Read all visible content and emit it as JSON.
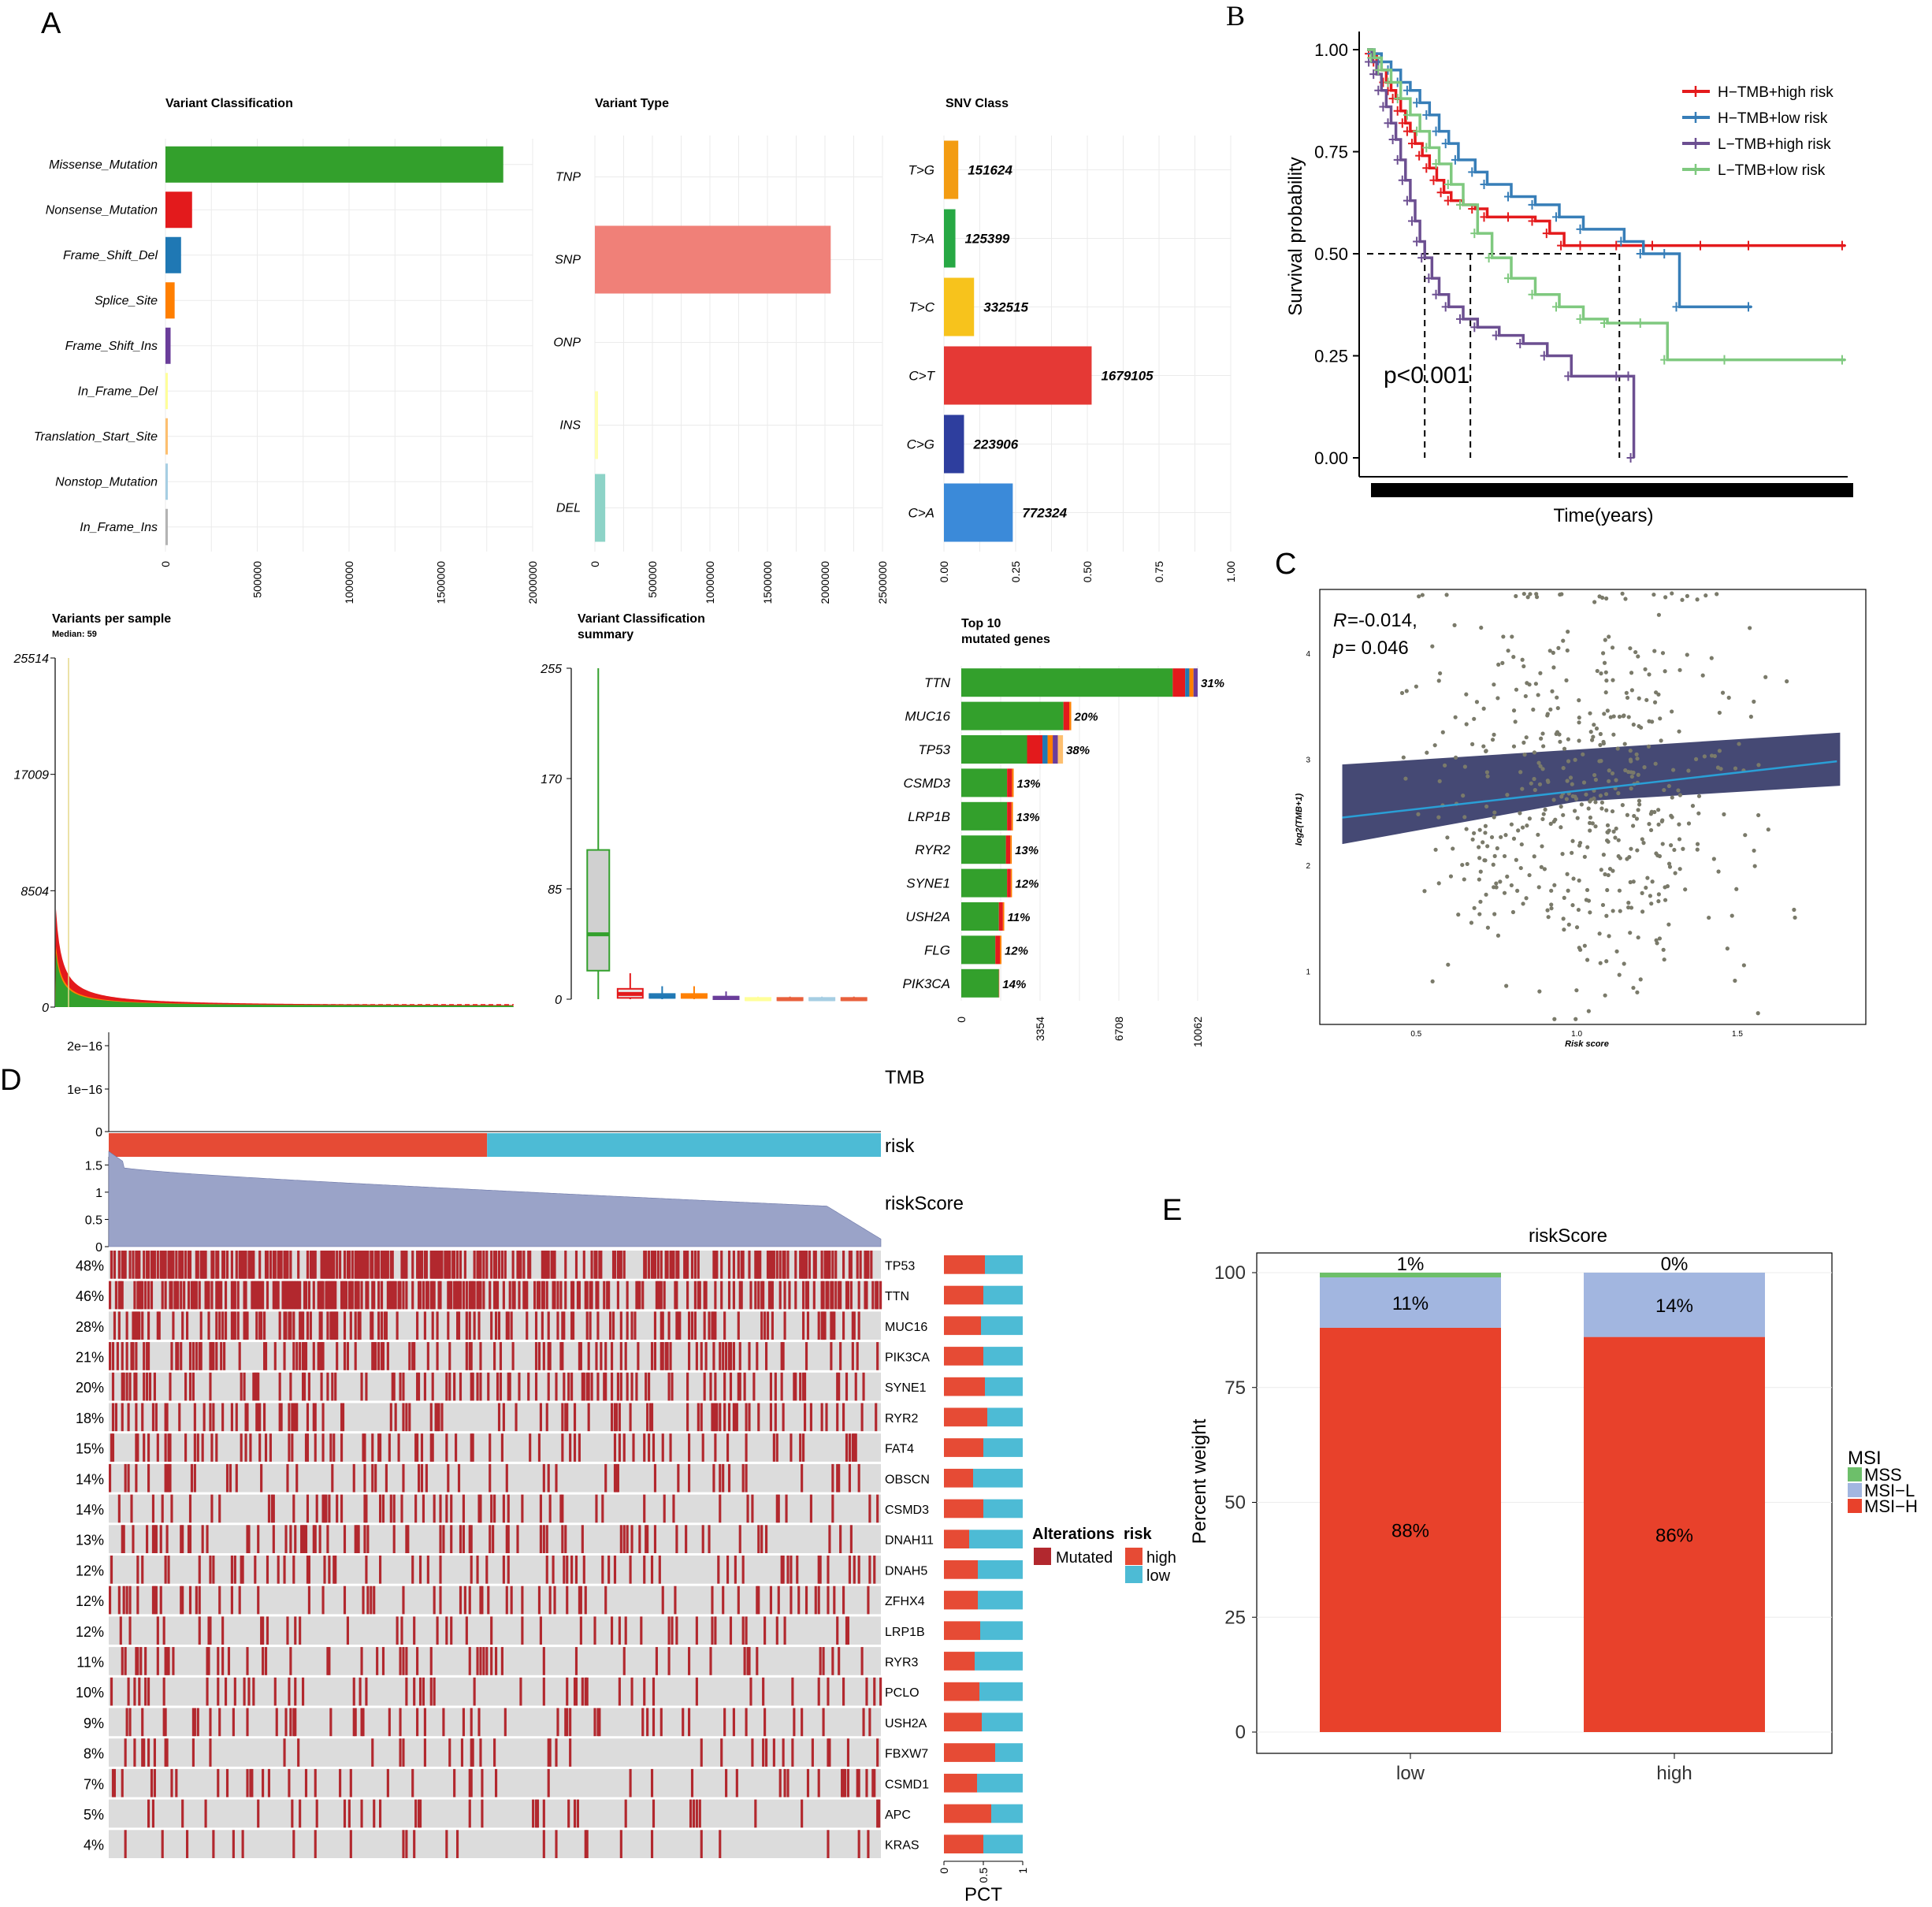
{
  "panels": {
    "A": "A",
    "B": "B",
    "C": "C",
    "D": "D",
    "E": "E"
  },
  "colors": {
    "green": "#33a02c",
    "red": "#e31a1c",
    "blue": "#1f78b4",
    "orange": "#ff7f00",
    "purple": "#6a3d9a",
    "yellow": "#ffff99",
    "peach": "#fdbf6f",
    "lightblue": "#a6cee3",
    "pink": "#fb9a99",
    "salmon": "#f08078",
    "teal": "#8dd3c7",
    "grey": "#b3b3b3",
    "mut": "#b2282e",
    "high": "#e64b35",
    "low": "#4dbbd5",
    "risk_area": "#9aa3c8",
    "km_red": "#e41a1c",
    "km_blue": "#377eb8",
    "km_purple": "#6c4f91",
    "km_green": "#7fc97f",
    "msi_h": "#e8412b",
    "msi_l": "#a2b6e0",
    "mss": "#6dbf6a",
    "scatter": "#7a7a6a",
    "band": "#3b3f6d",
    "fit": "#2a9fd6"
  },
  "chart_data": [
    {
      "id": "variant_classification",
      "type": "bar",
      "title": "Variant Classification",
      "categories": [
        "Missense_Mutation",
        "Nonsense_Mutation",
        "Frame_Shift_Del",
        "Splice_Site",
        "Frame_Shift_Ins",
        "In_Frame_Del",
        "Translation_Start_Site",
        "Nonstop_Mutation",
        "In_Frame_Ins"
      ],
      "values": [
        1840000,
        145000,
        85000,
        50000,
        28000,
        9000,
        5000,
        3000,
        2500
      ],
      "colors": [
        "#33a02c",
        "#e31a1c",
        "#1f78b4",
        "#ff7f00",
        "#6a3d9a",
        "#ffff99",
        "#fdbf6f",
        "#a6cee3",
        "#b3b3b3"
      ],
      "ticks": [
        "0",
        "500000",
        "1000000",
        "1500000",
        "2000000"
      ],
      "xlim": [
        0,
        2000000
      ]
    },
    {
      "id": "variant_type",
      "type": "bar",
      "title": "Variant Type",
      "categories": [
        "TNP",
        "SNP",
        "ONP",
        "INS",
        "DEL"
      ],
      "values": [
        0,
        2050000,
        0,
        18000,
        90000
      ],
      "colors": [
        "#fb9a99",
        "#f08078",
        "#fb9a99",
        "#ffffb3",
        "#8dd3c7"
      ],
      "ticks": [
        "0",
        "500000",
        "1000000",
        "1500000",
        "2000000",
        "2500000"
      ],
      "xlim": [
        0,
        2500000
      ]
    },
    {
      "id": "snv_class",
      "type": "bar",
      "title": "SNV Class",
      "categories": [
        "T>G",
        "T>A",
        "T>C",
        "C>T",
        "C>G",
        "C>A"
      ],
      "values": [
        0.05,
        0.04,
        0.105,
        0.515,
        0.07,
        0.24
      ],
      "labels": [
        "151624",
        "125399",
        "332515",
        "1679105",
        "223906",
        "772324"
      ],
      "colors": [
        "#f39c12",
        "#27a844",
        "#f7c31c",
        "#e53935",
        "#2e3e9e",
        "#3b8ad9"
      ],
      "ticks": [
        "0.00",
        "0.25",
        "0.50",
        "0.75",
        "1.00"
      ],
      "xlim": [
        0,
        1
      ]
    },
    {
      "id": "variants_per_sample",
      "type": "area",
      "title": "Variants per sample",
      "subtitle": "Median: 59",
      "ticks": [
        "0",
        "8504",
        "17009",
        "25514"
      ],
      "ylim": [
        0,
        25514
      ]
    },
    {
      "id": "variant_classification_summary",
      "type": "box",
      "title": "Variant Classification",
      "title2": "summary",
      "ticks": [
        "0",
        "85",
        "170",
        "255"
      ],
      "ylim": [
        0,
        255
      ],
      "boxes": [
        {
          "color": "#33a02c",
          "min": 0,
          "q1": 22,
          "median": 50,
          "q3": 115,
          "max": 255
        },
        {
          "color": "#e31a1c",
          "min": 0,
          "q1": 1,
          "median": 4,
          "q3": 8,
          "max": 20
        },
        {
          "color": "#1f78b4",
          "min": 0,
          "q1": 1,
          "median": 2,
          "q3": 4,
          "max": 10
        },
        {
          "color": "#ff7f00",
          "min": 0,
          "q1": 1,
          "median": 2,
          "q3": 4,
          "max": 10
        },
        {
          "color": "#6a3d9a",
          "min": 0,
          "q1": 0,
          "median": 1,
          "q3": 2,
          "max": 6
        },
        {
          "color": "#ffff99",
          "min": 0,
          "q1": 0,
          "median": 0,
          "q3": 1,
          "max": 2
        },
        {
          "color": "#e8603c",
          "min": 0,
          "q1": 0,
          "median": 0,
          "q3": 1,
          "max": 2
        },
        {
          "color": "#a6cee3",
          "min": 0,
          "q1": 0,
          "median": 0,
          "q3": 1,
          "max": 2
        },
        {
          "color": "#e8603c",
          "min": 0,
          "q1": 0,
          "median": 0,
          "q3": 1,
          "max": 2
        }
      ]
    },
    {
      "id": "top10",
      "type": "bar",
      "title": "Top 10",
      "title2": "mutated genes",
      "categories": [
        "TTN",
        "MUC16",
        "TP53",
        "CSMD3",
        "LRP1B",
        "RYR2",
        "SYNE1",
        "USH2A",
        "FLG",
        "PIK3CA"
      ],
      "values": [
        10062,
        4680,
        4330,
        2230,
        2200,
        2150,
        2160,
        1830,
        1710,
        1620
      ],
      "green": [
        9000,
        4350,
        2800,
        1950,
        1950,
        1900,
        1950,
        1600,
        1450,
        1600
      ],
      "labels": [
        "31%",
        "20%",
        "38%",
        "13%",
        "13%",
        "13%",
        "12%",
        "11%",
        "12%",
        "14%"
      ],
      "ticks": [
        "0",
        "3354",
        "6708",
        "10062"
      ],
      "xlim": [
        0,
        10062
      ]
    },
    {
      "id": "survival",
      "type": "line",
      "xlabel": "Time(years)",
      "ylabel": "Survival probability",
      "yticks": [
        "0.00",
        "0.25",
        "0.50",
        "0.75",
        "1.00"
      ],
      "ylim": [
        0,
        1
      ],
      "xlim": [
        0,
        20
      ],
      "pvalue": "p<0.001",
      "median_line": 0.5,
      "median_times": [
        2.4,
        4.3,
        10.5
      ],
      "series": [
        {
          "name": "H−TMB+high risk",
          "color": "#e41a1c",
          "x": [
            0,
            0.2,
            0.4,
            0.6,
            0.8,
            1.0,
            1.2,
            1.4,
            1.6,
            1.8,
            2.0,
            2.3,
            2.6,
            2.9,
            3.2,
            3.5,
            4.0,
            4.5,
            5.0,
            6.0,
            7.0,
            7.6,
            8.2,
            9.0,
            10.5,
            12,
            14,
            16,
            19.9
          ],
          "y": [
            1,
            0.99,
            0.97,
            0.95,
            0.92,
            0.9,
            0.88,
            0.85,
            0.82,
            0.8,
            0.77,
            0.74,
            0.71,
            0.68,
            0.65,
            0.63,
            0.62,
            0.61,
            0.59,
            0.59,
            0.58,
            0.55,
            0.52,
            0.52,
            0.52,
            0.52,
            0.52,
            0.52,
            0.52
          ]
        },
        {
          "name": "H−TMB+low risk",
          "color": "#377eb8",
          "x": [
            0,
            0.3,
            0.6,
            1.0,
            1.4,
            1.8,
            2.2,
            2.6,
            3.0,
            3.4,
            3.8,
            4.5,
            5.0,
            6.0,
            7.0,
            8.0,
            9.0,
            10.7,
            11.5,
            12.5,
            13.0,
            16.0
          ],
          "y": [
            1,
            0.99,
            0.97,
            0.95,
            0.92,
            0.9,
            0.87,
            0.84,
            0.8,
            0.77,
            0.73,
            0.7,
            0.67,
            0.64,
            0.62,
            0.59,
            0.56,
            0.53,
            0.5,
            0.5,
            0.37,
            0.37
          ]
        },
        {
          "name": "L−TMB+high risk",
          "color": "#6c4f91",
          "x": [
            0,
            0.2,
            0.4,
            0.6,
            0.8,
            1.0,
            1.2,
            1.4,
            1.6,
            1.8,
            2.0,
            2.2,
            2.4,
            2.7,
            3.0,
            3.4,
            4.0,
            4.6,
            5.5,
            6.5,
            7.5,
            8.5,
            10.5,
            11.0,
            11.1
          ],
          "y": [
            1,
            0.97,
            0.94,
            0.9,
            0.86,
            0.82,
            0.78,
            0.73,
            0.68,
            0.63,
            0.58,
            0.53,
            0.49,
            0.44,
            0.4,
            0.37,
            0.34,
            0.32,
            0.3,
            0.28,
            0.25,
            0.2,
            0.2,
            0.2,
            0.0
          ]
        },
        {
          "name": "L−TMB+low risk",
          "color": "#7fc97f",
          "x": [
            0,
            0.3,
            0.6,
            1.0,
            1.4,
            1.8,
            2.2,
            2.6,
            3.0,
            3.5,
            4.0,
            4.6,
            5.2,
            6.0,
            7.0,
            8.0,
            9.0,
            10.0,
            11.5,
            12.5,
            15.0,
            19.9
          ],
          "y": [
            1,
            0.98,
            0.95,
            0.92,
            0.88,
            0.84,
            0.8,
            0.76,
            0.72,
            0.67,
            0.62,
            0.55,
            0.49,
            0.44,
            0.4,
            0.37,
            0.34,
            0.33,
            0.33,
            0.24,
            0.24,
            0.24
          ]
        }
      ]
    },
    {
      "id": "scatter",
      "type": "scatter",
      "xlabel": "Risk score",
      "ylabel": "log2(TMB+1)",
      "r_label": "R",
      "r_value": "=-0.014,",
      "p_label": "p",
      "p_value": "= 0.046",
      "xticks": [
        "0.5",
        "1.0",
        "1.5"
      ],
      "yticks": [
        "1",
        "2",
        "3",
        "4"
      ],
      "xlim": [
        0.2,
        1.9
      ],
      "ylim": [
        0.5,
        4.6
      ]
    },
    {
      "id": "oncoplot",
      "type": "heatmap",
      "tmb_ticks": [
        "0",
        "1e−16",
        "2e−16"
      ],
      "risk_ticks": [
        "0",
        "0.5",
        "1",
        "1.5"
      ],
      "tracks": [
        "TMB",
        "risk",
        "riskScore"
      ],
      "genes": [
        "TP53",
        "TTN",
        "MUC16",
        "PIK3CA",
        "SYNE1",
        "RYR2",
        "FAT4",
        "OBSCN",
        "CSMD3",
        "DNAH11",
        "DNAH5",
        "ZFHX4",
        "LRP1B",
        "RYR3",
        "PCLO",
        "USH2A",
        "FBXW7",
        "CSMD1",
        "APC",
        "KRAS"
      ],
      "percents": [
        "48%",
        "46%",
        "28%",
        "21%",
        "20%",
        "18%",
        "15%",
        "14%",
        "14%",
        "13%",
        "12%",
        "12%",
        "12%",
        "11%",
        "10%",
        "9%",
        "8%",
        "7%",
        "5%",
        "4%"
      ],
      "freq": [
        0.48,
        0.46,
        0.28,
        0.21,
        0.2,
        0.18,
        0.15,
        0.14,
        0.14,
        0.13,
        0.12,
        0.12,
        0.12,
        0.11,
        0.1,
        0.09,
        0.08,
        0.07,
        0.05,
        0.04
      ],
      "high_frac": [
        0.52,
        0.5,
        0.47,
        0.5,
        0.52,
        0.55,
        0.5,
        0.37,
        0.5,
        0.32,
        0.43,
        0.43,
        0.46,
        0.39,
        0.45,
        0.48,
        0.65,
        0.42,
        0.6,
        0.5
      ],
      "pct_label": "PCT",
      "pct_ticks": [
        "0",
        "0.5",
        "1"
      ],
      "legend_alterations": "Alterations",
      "legend_mutated": "Mutated",
      "legend_risk": "risk",
      "legend_high": "high",
      "legend_low": "low"
    },
    {
      "id": "msi",
      "type": "bar",
      "title": "riskScore",
      "ylabel": "Percent weight",
      "categories": [
        "low",
        "high"
      ],
      "series": [
        {
          "name": "MSI−H",
          "values": [
            88,
            86
          ],
          "labels": [
            "88%",
            "86%"
          ]
        },
        {
          "name": "MSI−L",
          "values": [
            11,
            14
          ],
          "labels": [
            "11%",
            "14%"
          ]
        },
        {
          "name": "MSS",
          "values": [
            1,
            0
          ],
          "labels": [
            "1%",
            "0%"
          ]
        }
      ],
      "legend_title": "MSI",
      "yticks": [
        "0",
        "25",
        "50",
        "75",
        "100"
      ],
      "ylim": [
        0,
        100
      ]
    }
  ]
}
